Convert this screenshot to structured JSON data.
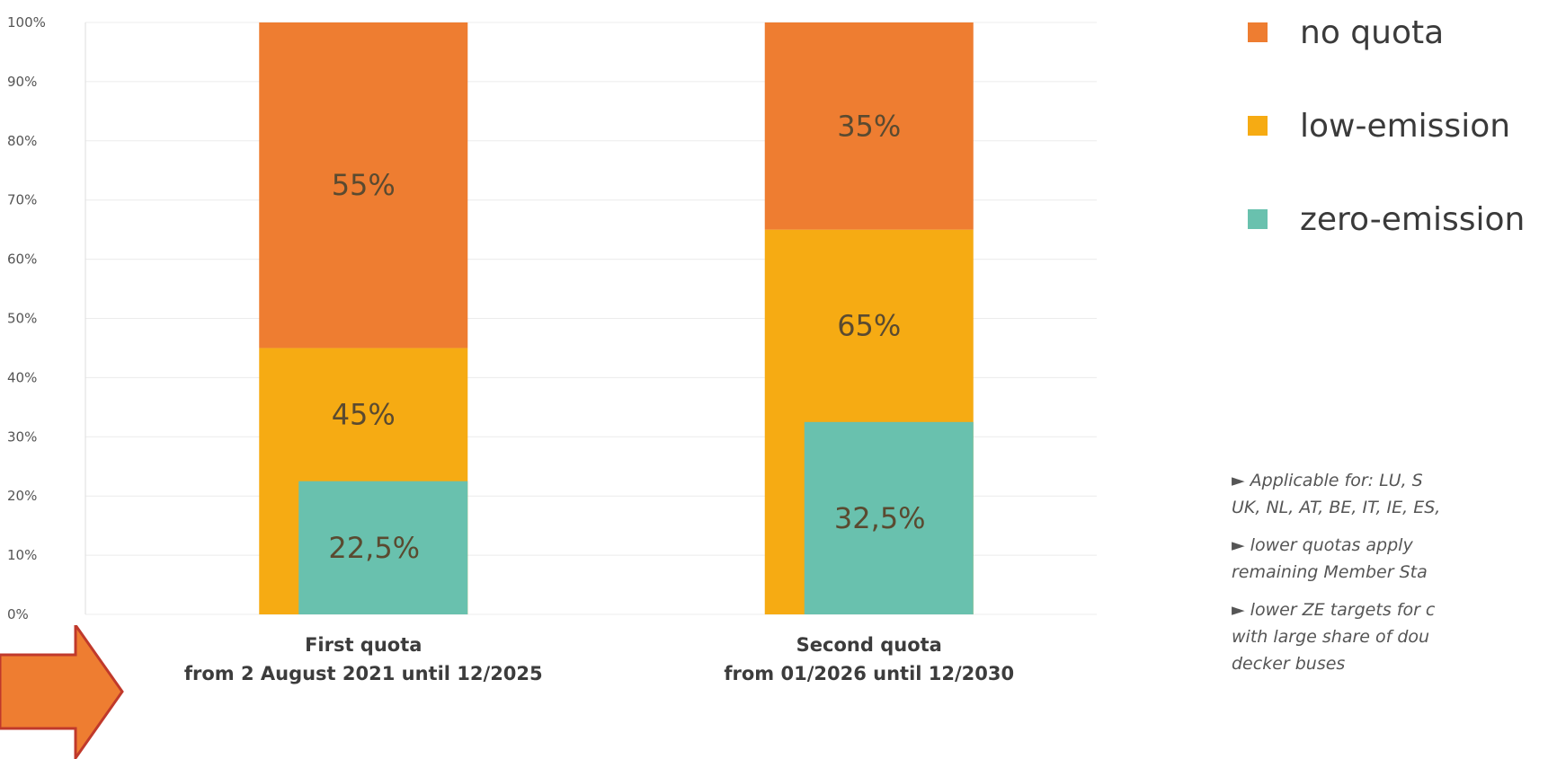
{
  "chart_data": {
    "type": "bar",
    "stacked": true,
    "categories": [
      [
        "First quota",
        "from 2 August 2021 until 12/2025"
      ],
      [
        "Second quota",
        "from 01/2026 until 12/2030"
      ]
    ],
    "series": [
      {
        "name": "low-emission",
        "values": [
          45,
          65
        ],
        "labels": [
          "45%",
          "65%"
        ],
        "color": "#f6ab13"
      },
      {
        "name": "no quota",
        "values": [
          55,
          35
        ],
        "labels": [
          "55%",
          "35%"
        ],
        "color": "#ee7d31"
      }
    ],
    "overlay_series": {
      "name": "zero-emission",
      "values": [
        22.5,
        32.5
      ],
      "labels": [
        "22,5%",
        "32,5%"
      ],
      "color": "#69c1ae"
    },
    "yticks": [
      "0%",
      "10%",
      "20%",
      "30%",
      "40%",
      "50%",
      "60%",
      "70%",
      "80%",
      "90%",
      "100%"
    ],
    "ylim": [
      0,
      100
    ],
    "grid": true,
    "legend_position": "right"
  },
  "legend": [
    {
      "label": "no quota",
      "color": "#ee7d31"
    },
    {
      "label": "low-emission",
      "color": "#f6ab13"
    },
    {
      "label": "zero-emission",
      "color": "#69c1ae"
    }
  ],
  "notes": {
    "n1_line1": "Applicable for: LU, S",
    "n1_line2": "UK, NL, AT, BE, IT, IE, ES,",
    "n2_line1": "lower quotas apply",
    "n2_line2": "remaining Member Sta",
    "n3_line1": "lower ZE targets for c",
    "n3_line2": "with large share of dou",
    "n3_line3": "decker buses",
    "marker": "►"
  },
  "arrow_color": "#ee7d31"
}
